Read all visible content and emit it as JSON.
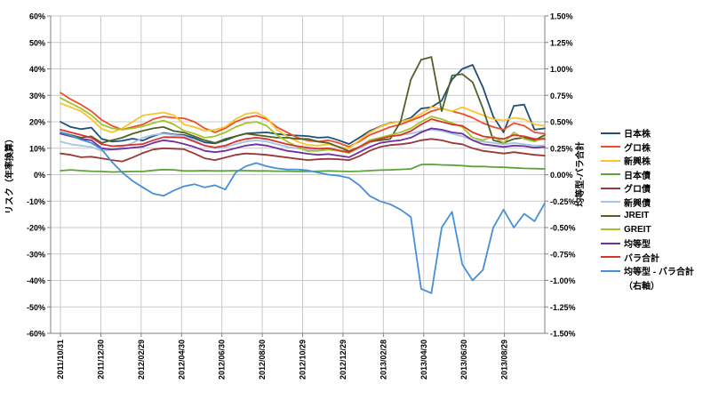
{
  "window": {
    "background": "#FFFFFF"
  },
  "colors": {
    "gridline": "#C9C9C9",
    "axis": "#808080",
    "text": "#000000"
  },
  "chart_data": {
    "type": "line",
    "title": "",
    "grid": true,
    "legend_position": "right",
    "n_points": 48,
    "x_range_note": "weekly samples from 2011/10/31 to 2013/09/27",
    "x_tick_labels": [
      "2011/10/31",
      "2011/12/30",
      "2012/02/29",
      "2012/04/30",
      "2012/06/30",
      "2012/08/30",
      "2012/10/29",
      "2012/12/29",
      "2013/02/28",
      "2013/04/30",
      "2013/06/30",
      "2013/08/29"
    ],
    "left_axis": {
      "label": "リスク（年率換算）",
      "min": -60,
      "max": 60,
      "step": 10,
      "tick_labels": [
        "60%",
        "50%",
        "40%",
        "30%",
        "20%",
        "10%",
        "0%",
        "-10%",
        "-20%",
        "-30%",
        "-40%",
        "-50%",
        "-60%"
      ]
    },
    "right_axis": {
      "label": "均等型-バラ合計",
      "min": -1.5,
      "max": 1.5,
      "step": 0.25,
      "tick_labels": [
        "1.50%",
        "1.25%",
        "1.00%",
        "0.75%",
        "0.50%",
        "0.25%",
        "0.00%",
        "-0.25%",
        "-0.50%",
        "-0.75%",
        "-1.00%",
        "-1.25%",
        "-1.50%"
      ]
    },
    "series": [
      {
        "name": "日本株",
        "color": "#1F4E79",
        "axis": "left",
        "values": [
          20.0,
          18.0,
          17.2,
          17.8,
          13.5,
          12.5,
          12.8,
          13.6,
          12.9,
          14.6,
          15.8,
          15.2,
          15.0,
          13.8,
          12.2,
          11.8,
          13.0,
          14.5,
          15.6,
          15.8,
          16.0,
          15.4,
          15.0,
          14.8,
          14.6,
          14.0,
          14.2,
          13.0,
          11.6,
          14.0,
          16.5,
          18.2,
          19.6,
          20.0,
          21.5,
          25.0,
          25.5,
          28.0,
          36.0,
          40.0,
          41.5,
          33.0,
          22.0,
          16.0,
          26.0,
          26.5,
          17.0,
          17.5
        ]
      },
      {
        "name": "グロ株",
        "color": "#E8502F",
        "axis": "left",
        "values": [
          31.0,
          28.5,
          26.5,
          24.0,
          20.7,
          18.5,
          17.0,
          18.0,
          19.0,
          21.0,
          22.0,
          21.5,
          21.3,
          20.0,
          17.5,
          16.0,
          17.5,
          20.0,
          21.5,
          22.3,
          21.0,
          18.0,
          16.0,
          14.0,
          12.9,
          12.5,
          13.0,
          12.0,
          10.6,
          12.5,
          15.0,
          16.5,
          18.0,
          19.0,
          20.5,
          22.0,
          24.0,
          25.0,
          24.0,
          23.0,
          21.5,
          19.5,
          18.0,
          17.0,
          19.5,
          18.5,
          16.0,
          15.5
        ]
      },
      {
        "name": "新興株",
        "color": "#FDC22D",
        "axis": "left",
        "values": [
          27.0,
          25.5,
          24.0,
          21.0,
          17.3,
          16.0,
          17.5,
          20.0,
          22.4,
          23.0,
          23.5,
          22.5,
          19.0,
          18.0,
          16.5,
          17.0,
          18.0,
          21.0,
          23.0,
          23.5,
          21.5,
          17.0,
          14.5,
          12.5,
          11.2,
          11.0,
          11.5,
          10.5,
          9.9,
          13.0,
          16.0,
          18.0,
          19.5,
          20.0,
          21.0,
          23.0,
          25.5,
          25.0,
          24.0,
          25.5,
          24.0,
          22.5,
          21.0,
          20.5,
          21.5,
          21.0,
          19.0,
          18.5
        ]
      },
      {
        "name": "日本債",
        "color": "#5CA437",
        "axis": "left",
        "values": [
          1.5,
          1.8,
          1.5,
          1.3,
          1.2,
          1.0,
          1.1,
          1.2,
          1.2,
          1.6,
          1.9,
          1.8,
          1.4,
          1.4,
          1.5,
          1.4,
          1.4,
          1.5,
          1.5,
          1.4,
          1.4,
          1.3,
          1.3,
          1.2,
          1.2,
          1.3,
          1.4,
          1.3,
          1.2,
          1.3,
          1.5,
          1.7,
          1.8,
          2.0,
          2.2,
          3.8,
          3.9,
          3.7,
          3.6,
          3.4,
          3.1,
          3.1,
          2.9,
          2.8,
          2.6,
          2.4,
          2.3,
          2.2
        ]
      },
      {
        "name": "グロ債",
        "color": "#993839",
        "axis": "left",
        "values": [
          8.0,
          7.5,
          6.6,
          6.8,
          6.2,
          5.5,
          5.0,
          6.5,
          8.2,
          9.5,
          10.0,
          9.8,
          9.6,
          8.0,
          6.2,
          5.5,
          6.5,
          7.5,
          8.0,
          7.8,
          7.5,
          7.0,
          6.5,
          6.0,
          5.5,
          5.8,
          6.0,
          5.8,
          5.5,
          7.0,
          9.0,
          10.5,
          11.2,
          11.5,
          12.0,
          13.0,
          13.5,
          13.0,
          12.0,
          11.5,
          10.0,
          9.0,
          8.5,
          8.0,
          8.5,
          8.0,
          7.5,
          7.2
        ]
      },
      {
        "name": "新興債",
        "color": "#A3C6E8",
        "axis": "left",
        "values": [
          12.5,
          11.5,
          11.0,
          10.5,
          9.0,
          9.5,
          10.5,
          12.0,
          14.0,
          15.0,
          15.5,
          15.0,
          14.6,
          13.0,
          11.0,
          10.0,
          10.5,
          11.5,
          12.5,
          13.0,
          12.5,
          11.5,
          10.5,
          10.0,
          9.6,
          9.0,
          9.5,
          9.0,
          8.2,
          10.0,
          12.0,
          13.5,
          14.5,
          15.0,
          15.5,
          16.5,
          17.0,
          16.5,
          15.5,
          14.5,
          13.0,
          12.5,
          12.0,
          11.5,
          12.0,
          11.5,
          11.0,
          11.0
        ]
      },
      {
        "name": "JREIT",
        "color": "#4F6228",
        "axis": "left",
        "values": [
          16.0,
          15.0,
          14.0,
          14.5,
          12.0,
          13.0,
          14.0,
          15.5,
          16.6,
          17.5,
          18.0,
          16.5,
          15.9,
          14.5,
          13.0,
          12.0,
          13.5,
          14.5,
          15.5,
          15.0,
          14.5,
          14.0,
          14.0,
          13.5,
          13.5,
          12.5,
          12.0,
          10.5,
          8.9,
          10.5,
          12.5,
          13.0,
          13.5,
          20.0,
          36.0,
          43.5,
          44.5,
          24.0,
          37.5,
          38.0,
          35.0,
          25.0,
          13.0,
          12.0,
          13.5,
          14.0,
          13.0,
          15.0
        ]
      },
      {
        "name": "GREIT",
        "color": "#A3C42A",
        "axis": "left",
        "values": [
          29.0,
          27.0,
          25.0,
          22.5,
          19.0,
          17.5,
          17.0,
          17.5,
          18.3,
          19.5,
          20.5,
          19.0,
          16.6,
          15.5,
          14.0,
          14.5,
          16.0,
          18.0,
          19.5,
          20.0,
          18.5,
          15.0,
          12.5,
          10.5,
          8.9,
          9.0,
          9.5,
          9.0,
          8.2,
          10.5,
          13.0,
          14.0,
          15.0,
          16.0,
          17.5,
          20.0,
          22.0,
          21.0,
          19.5,
          18.0,
          14.0,
          13.0,
          14.5,
          12.0,
          16.0,
          13.5,
          12.5,
          14.0
        ]
      },
      {
        "name": "均等型",
        "color": "#7030A0",
        "axis": "left",
        "values": [
          15.5,
          14.5,
          13.5,
          13.0,
          10.0,
          9.5,
          9.8,
          10.2,
          10.6,
          12.0,
          13.0,
          12.5,
          11.6,
          10.5,
          9.0,
          8.5,
          9.0,
          10.0,
          11.0,
          11.5,
          11.0,
          10.0,
          9.0,
          8.5,
          7.9,
          7.5,
          7.8,
          7.2,
          6.6,
          8.5,
          10.5,
          12.0,
          12.6,
          13.0,
          14.0,
          16.0,
          17.5,
          17.0,
          16.0,
          15.5,
          13.0,
          11.5,
          11.0,
          10.5,
          11.0,
          10.8,
          10.2,
          10.5
        ]
      },
      {
        "name": "バラ合計",
        "color": "#D9342B",
        "axis": "left",
        "values": [
          17.0,
          16.0,
          15.0,
          14.0,
          11.5,
          10.8,
          11.0,
          11.3,
          11.6,
          13.0,
          14.2,
          14.2,
          14.0,
          12.5,
          11.0,
          10.3,
          11.0,
          12.5,
          13.5,
          14.0,
          13.5,
          12.5,
          11.5,
          10.8,
          10.2,
          9.8,
          10.0,
          9.2,
          8.5,
          10.5,
          12.5,
          13.5,
          14.5,
          15.0,
          16.5,
          19.0,
          21.0,
          20.0,
          19.0,
          18.5,
          16.0,
          14.5,
          14.0,
          13.5,
          15.0,
          14.5,
          13.5,
          13.5
        ]
      },
      {
        "name": "均等型 - バラ合計",
        "name2": "（右軸）",
        "color": "#4590D8",
        "axis": "right",
        "values": [
          0.4,
          0.37,
          0.33,
          0.3,
          0.24,
          0.12,
          0.02,
          -0.06,
          -0.12,
          -0.18,
          -0.2,
          -0.15,
          -0.11,
          -0.09,
          -0.12,
          -0.1,
          -0.14,
          0.02,
          0.08,
          0.11,
          0.08,
          0.06,
          0.05,
          0.05,
          0.04,
          0.02,
          0.0,
          -0.01,
          -0.03,
          -0.1,
          -0.2,
          -0.25,
          -0.28,
          -0.33,
          -0.4,
          -1.08,
          -1.12,
          -0.5,
          -0.35,
          -0.85,
          -1.0,
          -0.9,
          -0.5,
          -0.33,
          -0.5,
          -0.37,
          -0.44,
          -0.27
        ]
      }
    ]
  }
}
